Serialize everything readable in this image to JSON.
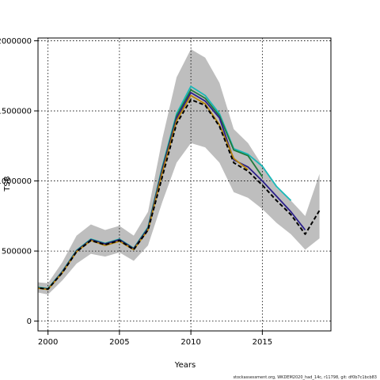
{
  "chart_data": {
    "type": "line",
    "xlabel": "Years",
    "ylabel": "TSB",
    "xlim": [
      1999.3,
      2019.8
    ],
    "ylim": [
      -70000,
      2020000
    ],
    "x_ticks": [
      2000,
      2005,
      2010,
      2015
    ],
    "x_tick_labels": [
      "2000",
      "2005",
      "2010",
      "2015"
    ],
    "y_ticks": [
      0,
      500000,
      1000000,
      1500000,
      2000000
    ],
    "y_tick_labels": [
      "0",
      "500000",
      "1000000",
      "1500000",
      "2000000"
    ],
    "grid": true,
    "footer": "stockassessment.org, WKDEM2020_had_14c, r11798, git: df0b7c1bcb83",
    "confidence_band": {
      "x": [
        1999,
        2000,
        2001,
        2002,
        2003,
        2004,
        2005,
        2006,
        2007,
        2008,
        2009,
        2010,
        2011,
        2012,
        2013,
        2014,
        2015,
        2016,
        2017,
        2018,
        2019
      ],
      "upper": [
        280000,
        270000,
        420000,
        610000,
        690000,
        650000,
        680000,
        610000,
        780000,
        1300000,
        1740000,
        1940000,
        1880000,
        1700000,
        1370000,
        1270000,
        1110000,
        950000,
        860000,
        750000,
        1050000
      ],
      "lower": [
        210000,
        190000,
        290000,
        410000,
        480000,
        460000,
        490000,
        430000,
        540000,
        850000,
        1130000,
        1270000,
        1240000,
        1130000,
        920000,
        880000,
        800000,
        700000,
        620000,
        510000,
        590000
      ],
      "color": "#bebebe"
    },
    "series": [
      {
        "color": "#1ab8b8",
        "x": [
          1999,
          2000,
          2001,
          2002,
          2003,
          2004,
          2005,
          2006,
          2007,
          2008,
          2009,
          2010,
          2011,
          2012,
          2013,
          2014,
          2015,
          2016,
          2017
        ],
        "values": [
          245000,
          232000,
          355000,
          505000,
          585000,
          555000,
          585000,
          520000,
          670000,
          1100000,
          1480000,
          1675000,
          1610000,
          1480000,
          1230000,
          1190000,
          1105000,
          960000,
          860000
        ]
      },
      {
        "color": "#1f7a3c",
        "x": [
          1999,
          2000,
          2001,
          2002,
          2003,
          2004,
          2005,
          2006,
          2007,
          2008,
          2009,
          2010,
          2011,
          2012,
          2013,
          2014,
          2015
        ],
        "values": [
          242000,
          230000,
          352000,
          502000,
          582000,
          552000,
          582000,
          518000,
          665000,
          1090000,
          1465000,
          1650000,
          1590000,
          1465000,
          1220000,
          1180000,
          1030000
        ]
      },
      {
        "color": "#2b1f8a",
        "x": [
          1999,
          2000,
          2001,
          2002,
          2003,
          2004,
          2005,
          2006,
          2007,
          2008,
          2009,
          2010,
          2011,
          2012,
          2013,
          2014,
          2015,
          2016,
          2017,
          2018
        ],
        "values": [
          240000,
          228000,
          350000,
          500000,
          580000,
          550000,
          580000,
          515000,
          660000,
          1080000,
          1450000,
          1630000,
          1570000,
          1450000,
          1150000,
          1100000,
          1000000,
          890000,
          780000,
          650000
        ]
      },
      {
        "color": "#b8860b",
        "x": [
          1999,
          2000,
          2001,
          2002,
          2003,
          2004,
          2005,
          2006,
          2007,
          2008,
          2009,
          2010,
          2011,
          2012,
          2013,
          2014
        ],
        "values": [
          238000,
          226000,
          345000,
          495000,
          575000,
          540000,
          570000,
          510000,
          650000,
          1060000,
          1430000,
          1610000,
          1550000,
          1400000,
          1160000,
          1080000
        ]
      },
      {
        "color": "#000000",
        "dashed": true,
        "x": [
          1999,
          2000,
          2001,
          2002,
          2003,
          2004,
          2005,
          2006,
          2007,
          2008,
          2009,
          2010,
          2011,
          2012,
          2013,
          2014,
          2015,
          2016,
          2017,
          2018,
          2019
        ],
        "values": [
          240000,
          228000,
          345000,
          495000,
          575000,
          545000,
          575000,
          510000,
          650000,
          1030000,
          1410000,
          1580000,
          1540000,
          1390000,
          1130000,
          1070000,
          970000,
          860000,
          760000,
          620000,
          790000
        ]
      }
    ]
  }
}
